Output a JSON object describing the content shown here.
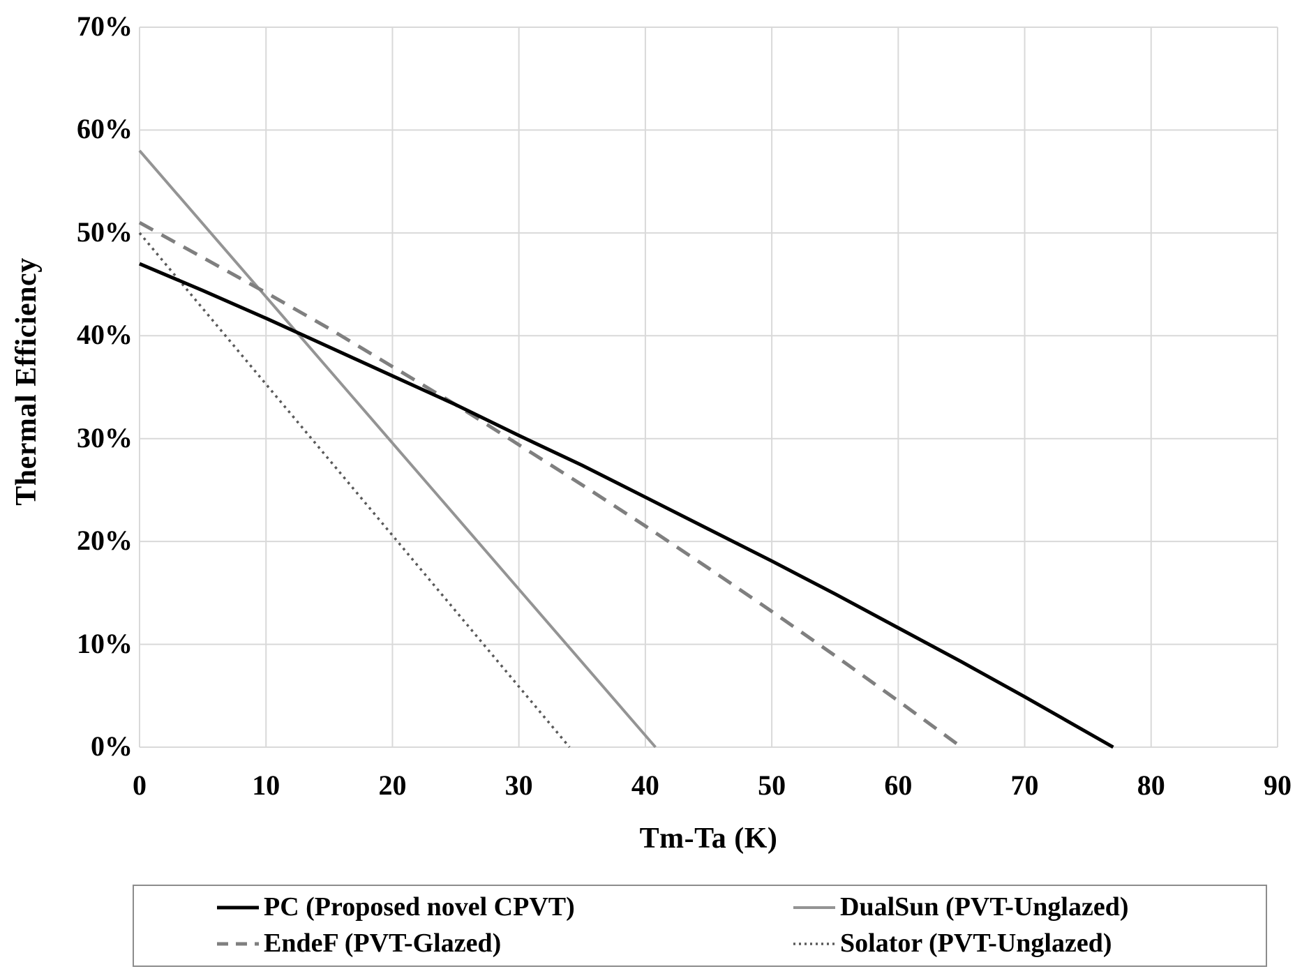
{
  "chart_data": {
    "type": "line",
    "title": "",
    "xlabel": "Tm-Ta (K)",
    "ylabel": "Thermal Efficiency",
    "xlim": [
      0,
      90
    ],
    "ylim": [
      0,
      70
    ],
    "x_ticks": [
      0,
      10,
      20,
      30,
      40,
      50,
      60,
      70,
      80,
      90
    ],
    "y_ticks": [
      {
        "v": 0,
        "label": "0%"
      },
      {
        "v": 10,
        "label": "10%"
      },
      {
        "v": 20,
        "label": "20%"
      },
      {
        "v": 30,
        "label": "30%"
      },
      {
        "v": 40,
        "label": "40%"
      },
      {
        "v": 50,
        "label": "50%"
      },
      {
        "v": 60,
        "label": "60%"
      },
      {
        "v": 70,
        "label": "70%"
      }
    ],
    "grid": true,
    "gridline_color": "#d9d9d9",
    "legend_position": "bottom",
    "series": [
      {
        "name": "PC (Proposed novel CPVT)",
        "style": "solid",
        "color": "#000000",
        "stroke_width": 5,
        "points": [
          [
            0,
            47
          ],
          [
            5,
            44.4
          ],
          [
            10,
            41.7
          ],
          [
            15,
            38.9
          ],
          [
            20,
            36.1
          ],
          [
            25,
            33.3
          ],
          [
            30,
            30.3
          ],
          [
            35,
            27.4
          ],
          [
            40,
            24.3
          ],
          [
            45,
            21.2
          ],
          [
            50,
            18.1
          ],
          [
            55,
            14.9
          ],
          [
            60,
            11.6
          ],
          [
            65,
            8.3
          ],
          [
            70,
            4.9
          ],
          [
            77,
            0
          ]
        ]
      },
      {
        "name": "DualSun (PVT-Unglazed)",
        "style": "solid",
        "color": "#949494",
        "stroke_width": 4,
        "points": [
          [
            0,
            58
          ],
          [
            40.8,
            0
          ]
        ]
      },
      {
        "name": "EndeF (PVT-Glazed)",
        "style": "dashed",
        "color": "#7f7f7f",
        "stroke_width": 5,
        "points": [
          [
            0,
            51
          ],
          [
            5,
            47.6
          ],
          [
            10,
            44.2
          ],
          [
            15,
            40.7
          ],
          [
            20,
            37
          ],
          [
            25,
            33.3
          ],
          [
            30,
            29.4
          ],
          [
            35,
            25.5
          ],
          [
            40,
            21.5
          ],
          [
            45,
            17.4
          ],
          [
            50,
            13.2
          ],
          [
            55,
            8.9
          ],
          [
            60,
            4.5
          ],
          [
            65,
            0
          ]
        ]
      },
      {
        "name": "Solator (PVT-Unglazed)",
        "style": "dotted",
        "color": "#595959",
        "stroke_width": 3.5,
        "points": [
          [
            0,
            50
          ],
          [
            34,
            0
          ]
        ]
      }
    ]
  },
  "legend": {
    "items": [
      {
        "label": "PC (Proposed novel CPVT)",
        "series": 0
      },
      {
        "label": "DualSun (PVT-Unglazed)",
        "series": 1
      },
      {
        "label": "EndeF (PVT-Glazed)",
        "series": 2
      },
      {
        "label": "Solator (PVT-Unglazed)",
        "series": 3
      }
    ]
  }
}
